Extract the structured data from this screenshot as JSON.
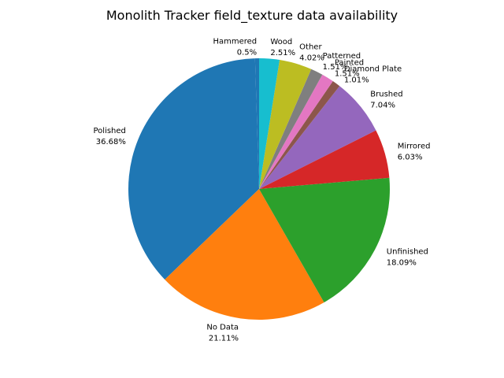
{
  "chart_data": {
    "type": "pie",
    "title": "Monolith Tracker field_texture data availability",
    "start_angle_deg": 90,
    "direction": "counterclockwise",
    "slices": [
      {
        "label": "Hammered",
        "pct_label": "0.5%",
        "value": 0.5,
        "color": "#1f77b4"
      },
      {
        "label": "Polished",
        "pct_label": "36.68%",
        "value": 36.68,
        "color": "#1f77b4"
      },
      {
        "label": "No Data",
        "pct_label": "21.11%",
        "value": 21.11,
        "color": "#ff7f0e"
      },
      {
        "label": "Unfinished",
        "pct_label": "18.09%",
        "value": 18.09,
        "color": "#2ca02c"
      },
      {
        "label": "Mirrored",
        "pct_label": "6.03%",
        "value": 6.03,
        "color": "#d62728"
      },
      {
        "label": "Brushed",
        "pct_label": "7.04%",
        "value": 7.04,
        "color": "#9467bd"
      },
      {
        "label": "Diamond Plate",
        "pct_label": "1.01%",
        "value": 1.01,
        "color": "#8c564b"
      },
      {
        "label": "Painted",
        "pct_label": "1.51%",
        "value": 1.51,
        "color": "#e377c2"
      },
      {
        "label": "Patterned",
        "pct_label": "1.51%",
        "value": 1.51,
        "color": "#7f7f7f"
      },
      {
        "label": "Other",
        "pct_label": "4.02%",
        "value": 4.02,
        "color": "#bcbd22"
      },
      {
        "label": "Wood",
        "pct_label": "2.51%",
        "value": 2.51,
        "color": "#17becf"
      }
    ]
  }
}
